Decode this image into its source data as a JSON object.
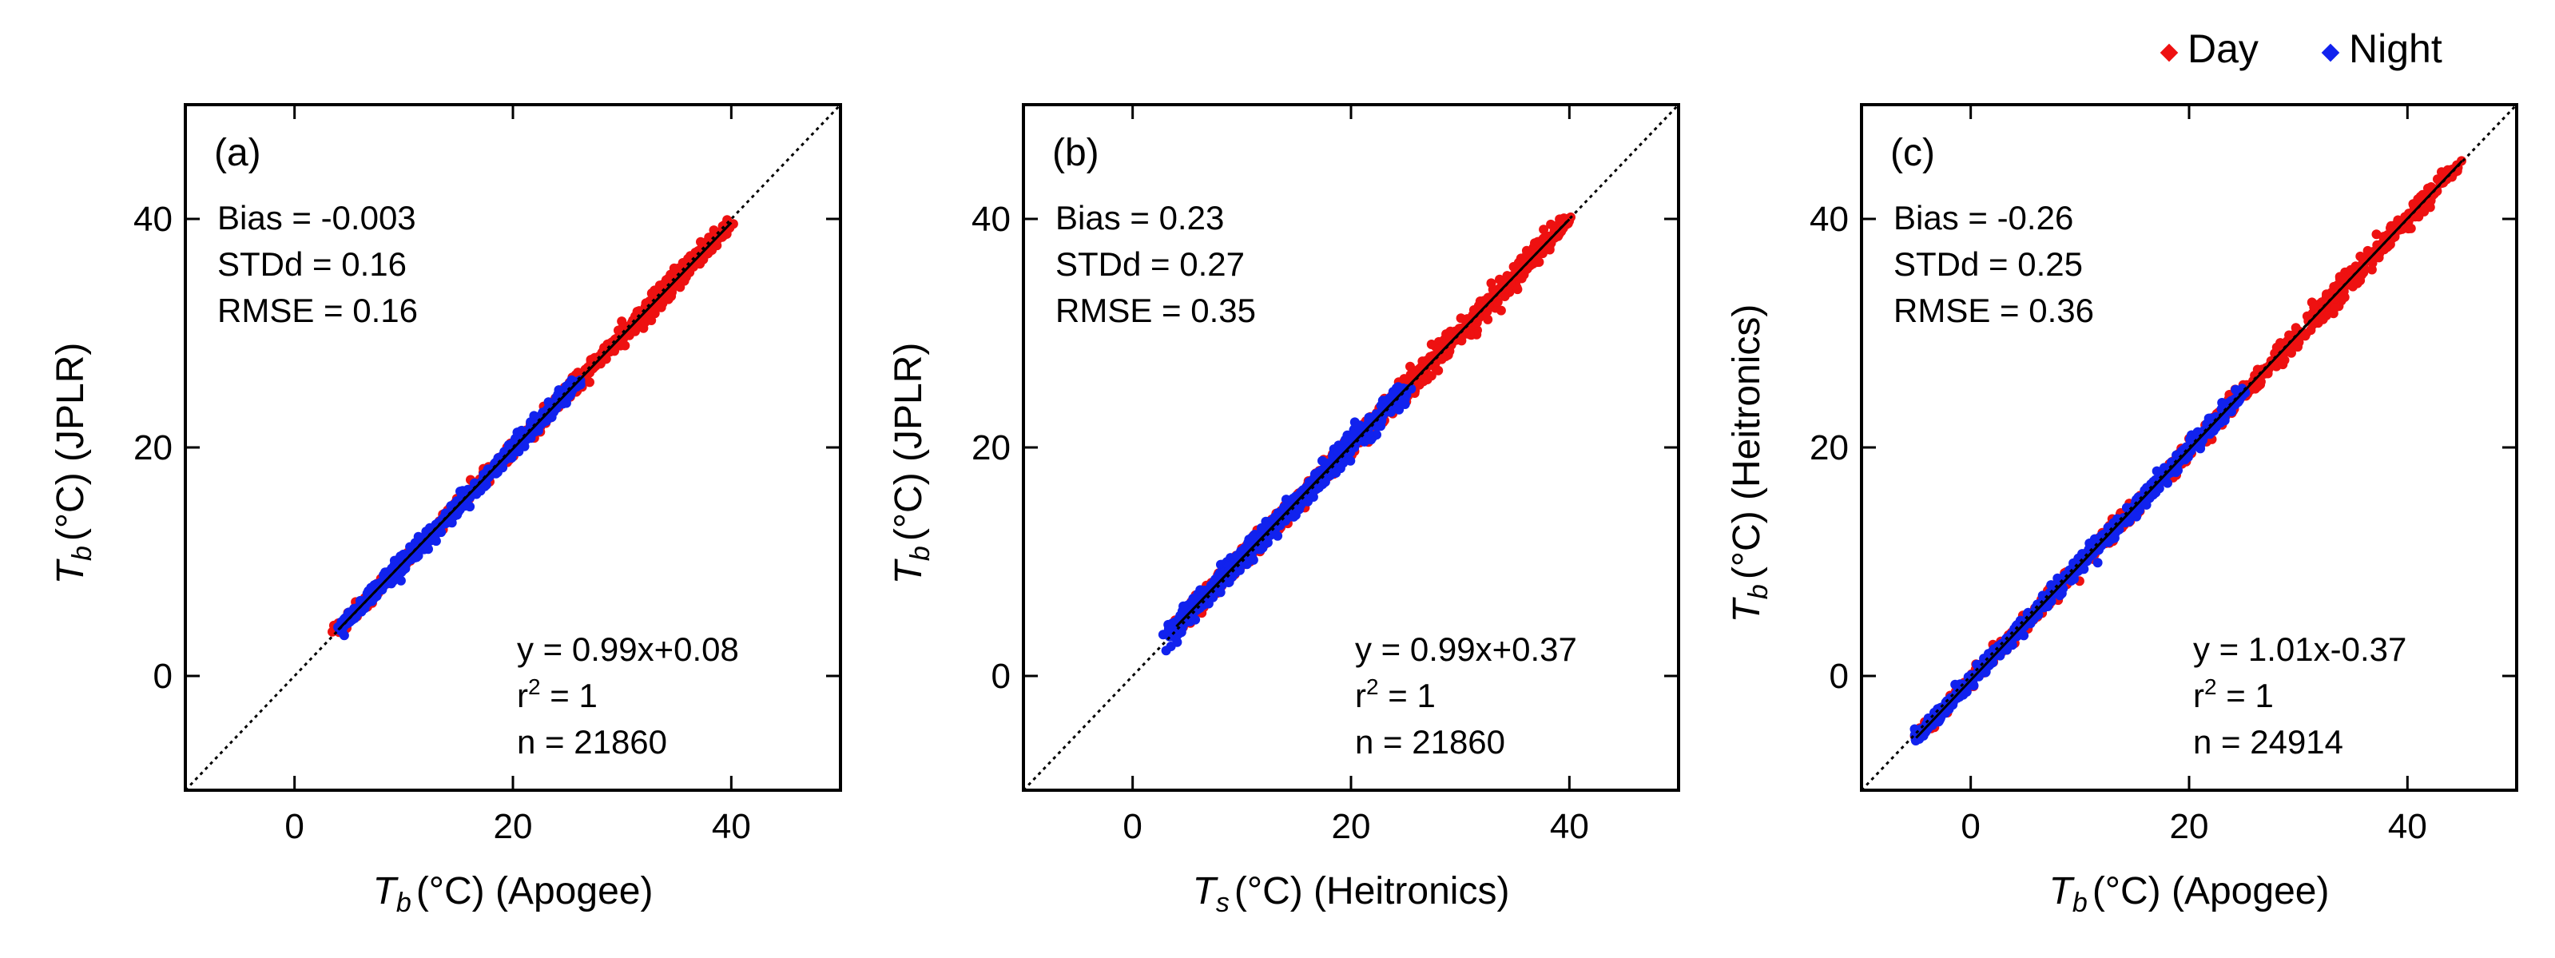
{
  "legend": [
    {
      "label": "Day",
      "color": "#ee1111"
    },
    {
      "label": "Night",
      "color": "#1122ee"
    }
  ],
  "chart_data": [
    {
      "type": "scatter",
      "panel": "(a)",
      "xlabel": {
        "symbol": "T",
        "sub": "b",
        "unit": "(°C) (Apogee)"
      },
      "ylabel": {
        "symbol": "T",
        "sub": "b",
        "unit": "(°C) (JPLR)"
      },
      "xlim": [
        -10,
        50
      ],
      "ylim": [
        -10,
        50
      ],
      "xticks": [
        0,
        20,
        40
      ],
      "yticks": [
        0,
        20,
        40
      ],
      "stats": {
        "bias": "Bias = -0.003",
        "stdd": "STDd = 0.16",
        "rmse": "RMSE = 0.16"
      },
      "fit": {
        "eq": "y = 0.99x+0.08",
        "r2": "1",
        "n": "n = 21860"
      },
      "series": [
        {
          "name": "Day",
          "range": [
            4,
            40
          ],
          "slope": 0.99,
          "intercept": 0.08,
          "spread": [
            [
              4,
              0.4
            ],
            [
              20,
              0.45
            ],
            [
              29,
              0.5
            ],
            [
              31,
              1.4
            ],
            [
              34,
              0.9
            ],
            [
              38,
              0.5
            ],
            [
              40,
              0.4
            ]
          ]
        },
        {
          "name": "Night",
          "range": [
            4,
            26
          ],
          "slope": 0.99,
          "intercept": 0.08,
          "spread": [
            [
              4,
              0.5
            ],
            [
              26,
              0.55
            ]
          ]
        }
      ]
    },
    {
      "type": "scatter",
      "panel": "(b)",
      "xlabel": {
        "symbol": "T",
        "sub": "s",
        "unit": "(°C) (Heitronics)"
      },
      "ylabel": {
        "symbol": "T",
        "sub": "b",
        "unit": "(°C) (JPLR)"
      },
      "xlim": [
        -10,
        50
      ],
      "ylim": [
        -10,
        50
      ],
      "xticks": [
        0,
        20,
        40
      ],
      "yticks": [
        0,
        20,
        40
      ],
      "stats": {
        "bias": "Bias = 0.23",
        "stdd": "STDd = 0.27",
        "rmse": "RMSE = 0.35"
      },
      "fit": {
        "eq": "y = 0.99x+0.37",
        "r2": "1",
        "n": "n = 21860"
      },
      "series": [
        {
          "name": "Day",
          "range": [
            4,
            40
          ],
          "slope": 0.99,
          "intercept": 0.37,
          "spread": [
            [
              4,
              0.6
            ],
            [
              20,
              0.7
            ],
            [
              30,
              1.1
            ],
            [
              36,
              0.9
            ],
            [
              40,
              0.5
            ]
          ]
        },
        {
          "name": "Night",
          "range": [
            3,
            25
          ],
          "slope": 0.99,
          "intercept": 0.37,
          "spread": [
            [
              3,
              0.9
            ],
            [
              15,
              0.9
            ],
            [
              25,
              0.9
            ]
          ]
        }
      ]
    },
    {
      "type": "scatter",
      "panel": "(c)",
      "xlabel": {
        "symbol": "T",
        "sub": "b",
        "unit": "(°C) (Apogee)"
      },
      "ylabel": {
        "symbol": "T",
        "sub": "b",
        "unit": "(°C) (Heitronics)"
      },
      "xlim": [
        -10,
        50
      ],
      "ylim": [
        -10,
        50
      ],
      "xticks": [
        0,
        20,
        40
      ],
      "yticks": [
        0,
        20,
        40
      ],
      "stats": {
        "bias": "Bias = -0.26",
        "stdd": "STDd = 0.25",
        "rmse": "RMSE = 0.36"
      },
      "fit": {
        "eq": "y = 1.01x-0.37",
        "r2": "1",
        "n": "n = 24914"
      },
      "series": [
        {
          "name": "Day",
          "range": [
            -5,
            45
          ],
          "slope": 1.01,
          "intercept": -0.37,
          "spread": [
            [
              -5,
              0.4
            ],
            [
              10,
              0.5
            ],
            [
              25,
              0.7
            ],
            [
              32,
              1.3
            ],
            [
              38,
              0.8
            ],
            [
              45,
              0.5
            ]
          ]
        },
        {
          "name": "Night",
          "range": [
            -5,
            25
          ],
          "slope": 1.01,
          "intercept": -0.37,
          "spread": [
            [
              -5,
              0.5
            ],
            [
              25,
              0.6
            ]
          ]
        }
      ]
    }
  ]
}
